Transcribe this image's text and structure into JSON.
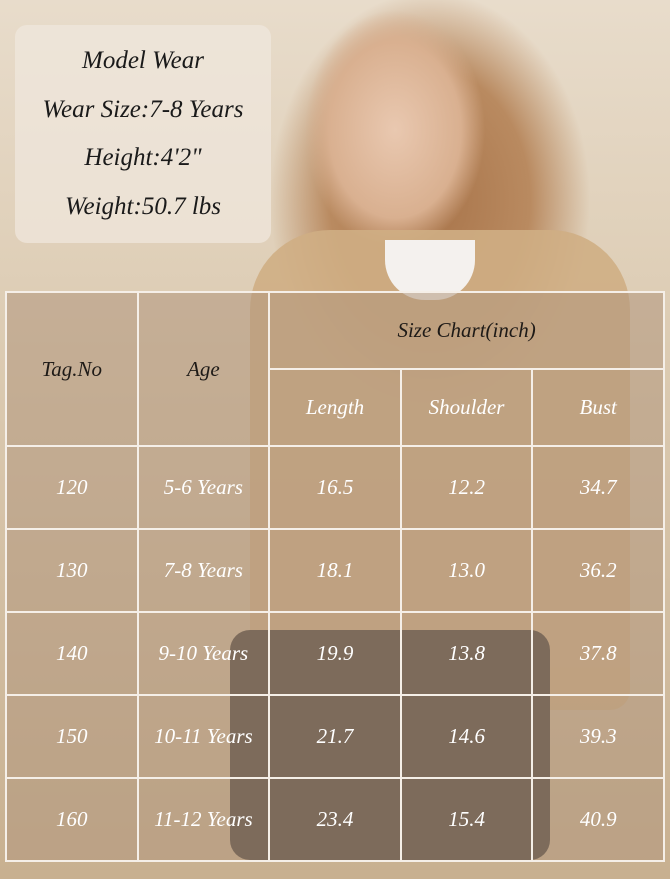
{
  "model_info": {
    "title": "Model Wear",
    "wear_size": "Wear Size:7-8 Years",
    "height": "Height:4'2\"",
    "weight": "Weight:50.7 lbs"
  },
  "table": {
    "headers": {
      "tag": "Tag.No",
      "age": "Age",
      "group": "Size Chart(inch)",
      "length": "Length",
      "shoulder": "Shoulder",
      "bust": "Bust"
    },
    "rows": [
      [
        "120",
        "5-6 Years",
        "16.5",
        "12.2",
        "34.7"
      ],
      [
        "130",
        "7-8 Years",
        "18.1",
        "13.0",
        "36.2"
      ],
      [
        "140",
        "9-10 Years",
        "19.9",
        "13.8",
        "37.8"
      ],
      [
        "150",
        "10-11 Years",
        "21.7",
        "14.6",
        "39.3"
      ],
      [
        "160",
        "11-12 Years",
        "23.4",
        "15.4",
        "40.9"
      ]
    ]
  },
  "colors": {
    "overlay": "#b0967c",
    "border": "#f5efe8",
    "text_dark": "#1e1a17"
  }
}
